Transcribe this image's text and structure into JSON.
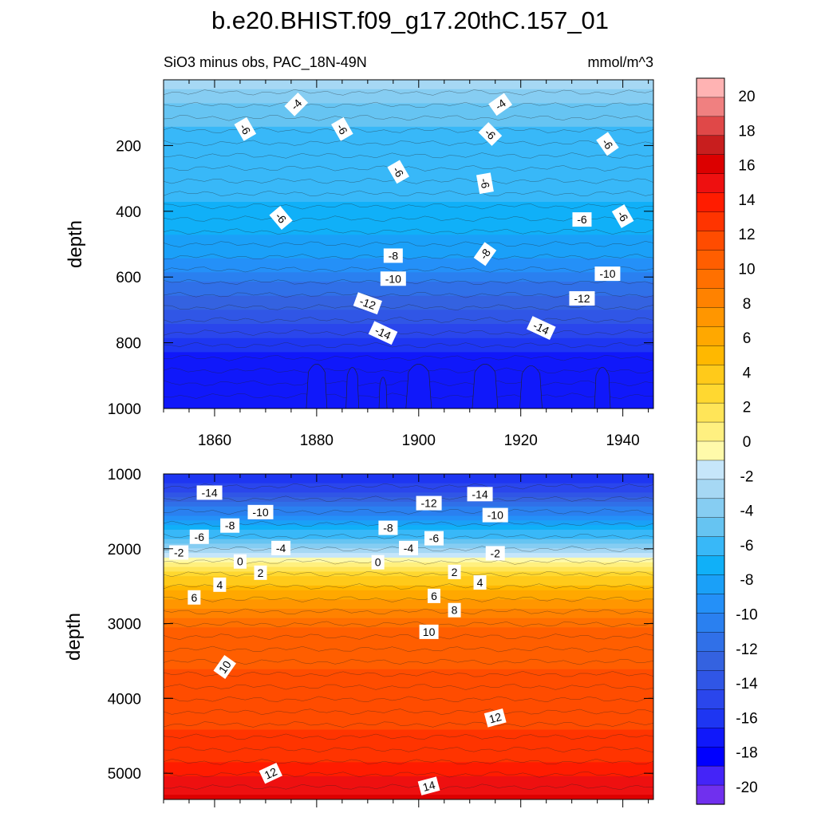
{
  "chart_data": [
    {
      "type": "heatmap",
      "panel": "upper",
      "title": "b.e20.BHIST.f09_g17.20thC.157_01",
      "subtitle_left": "SiO3 minus obs, PAC_18N-49N",
      "subtitle_right": "mmol/m^3",
      "xlabel": "",
      "ylabel": "depth",
      "xlim": [
        1850,
        1946
      ],
      "ylim": [
        1000,
        0
      ],
      "x_ticks": [
        1860,
        1880,
        1900,
        1920,
        1940
      ],
      "y_ticks": [
        200,
        400,
        600,
        800,
        1000
      ],
      "depth_value_profile": [
        {
          "depth": 0,
          "value": -2
        },
        {
          "depth": 60,
          "value": -4
        },
        {
          "depth": 150,
          "value": -5.5
        },
        {
          "depth": 300,
          "value": -6
        },
        {
          "depth": 420,
          "value": -6.5
        },
        {
          "depth": 520,
          "value": -8
        },
        {
          "depth": 600,
          "value": -10
        },
        {
          "depth": 680,
          "value": -12
        },
        {
          "depth": 760,
          "value": -14
        },
        {
          "depth": 840,
          "value": -16
        },
        {
          "depth": 1000,
          "value": -16.5
        }
      ],
      "contour_labels": [
        {
          "x": 1876,
          "depth": 75,
          "text": "-4",
          "angle": -45
        },
        {
          "x": 1916,
          "depth": 75,
          "text": "-4",
          "angle": -35
        },
        {
          "x": 1866,
          "depth": 150,
          "text": "-6",
          "angle": 60
        },
        {
          "x": 1885,
          "depth": 150,
          "text": "-6",
          "angle": 60
        },
        {
          "x": 1914,
          "depth": 165,
          "text": "-6",
          "angle": 45
        },
        {
          "x": 1937,
          "depth": 195,
          "text": "-6",
          "angle": 55
        },
        {
          "x": 1896,
          "depth": 280,
          "text": "-6",
          "angle": 60
        },
        {
          "x": 1913,
          "depth": 315,
          "text": "-6",
          "angle": 80
        },
        {
          "x": 1873,
          "depth": 420,
          "text": "-6",
          "angle": 50
        },
        {
          "x": 1932,
          "depth": 425,
          "text": "-6",
          "angle": 0
        },
        {
          "x": 1940,
          "depth": 415,
          "text": "-6",
          "angle": 60
        },
        {
          "x": 1895,
          "depth": 535,
          "text": "-8",
          "angle": 0
        },
        {
          "x": 1913,
          "depth": 530,
          "text": "-8",
          "angle": -55
        },
        {
          "x": 1895,
          "depth": 605,
          "text": "-10",
          "angle": 0
        },
        {
          "x": 1937,
          "depth": 590,
          "text": "-10",
          "angle": 0
        },
        {
          "x": 1890,
          "depth": 680,
          "text": "-12",
          "angle": 20
        },
        {
          "x": 1932,
          "depth": 665,
          "text": "-12",
          "angle": 0
        },
        {
          "x": 1893,
          "depth": 770,
          "text": "-14",
          "angle": 25
        },
        {
          "x": 1924,
          "depth": 755,
          "text": "-14",
          "angle": 25
        }
      ]
    },
    {
      "type": "heatmap",
      "panel": "lower",
      "xlabel": "",
      "ylabel": "depth",
      "xlim": [
        1850,
        1946
      ],
      "ylim": [
        5350,
        1000
      ],
      "y_ticks": [
        1000,
        2000,
        3000,
        4000,
        5000
      ],
      "depth_value_profile": [
        {
          "depth": 1000,
          "value": -16
        },
        {
          "depth": 1200,
          "value": -14
        },
        {
          "depth": 1500,
          "value": -10
        },
        {
          "depth": 1800,
          "value": -6
        },
        {
          "depth": 2050,
          "value": -2
        },
        {
          "depth": 2150,
          "value": 0
        },
        {
          "depth": 2300,
          "value": 2
        },
        {
          "depth": 2450,
          "value": 4
        },
        {
          "depth": 2650,
          "value": 6
        },
        {
          "depth": 2850,
          "value": 8
        },
        {
          "depth": 3150,
          "value": 10
        },
        {
          "depth": 4000,
          "value": 11
        },
        {
          "depth": 4700,
          "value": 12
        },
        {
          "depth": 5350,
          "value": 15
        }
      ],
      "contour_labels": [
        {
          "x": 1859,
          "depth": 1250,
          "text": "-14",
          "angle": 0
        },
        {
          "x": 1912,
          "depth": 1270,
          "text": "-14",
          "angle": 0
        },
        {
          "x": 1869,
          "depth": 1510,
          "text": "-10",
          "angle": 0
        },
        {
          "x": 1902,
          "depth": 1390,
          "text": "-12",
          "angle": 0
        },
        {
          "x": 1915,
          "depth": 1550,
          "text": "-10",
          "angle": 0
        },
        {
          "x": 1863,
          "depth": 1690,
          "text": "-8",
          "angle": 0
        },
        {
          "x": 1894,
          "depth": 1720,
          "text": "-8",
          "angle": 0
        },
        {
          "x": 1857,
          "depth": 1840,
          "text": "-6",
          "angle": 0
        },
        {
          "x": 1873,
          "depth": 1990,
          "text": "-4",
          "angle": 0
        },
        {
          "x": 1898,
          "depth": 1990,
          "text": "-4",
          "angle": 0
        },
        {
          "x": 1903,
          "depth": 1860,
          "text": "-6",
          "angle": 0
        },
        {
          "x": 1853,
          "depth": 2050,
          "text": "-2",
          "angle": 0
        },
        {
          "x": 1915,
          "depth": 2060,
          "text": "-2",
          "angle": 0
        },
        {
          "x": 1865,
          "depth": 2170,
          "text": "0",
          "angle": 0
        },
        {
          "x": 1892,
          "depth": 2180,
          "text": "0",
          "angle": 0
        },
        {
          "x": 1869,
          "depth": 2320,
          "text": "2",
          "angle": 0
        },
        {
          "x": 1907,
          "depth": 2310,
          "text": "2",
          "angle": 0
        },
        {
          "x": 1861,
          "depth": 2480,
          "text": "4",
          "angle": 0
        },
        {
          "x": 1912,
          "depth": 2450,
          "text": "4",
          "angle": 0
        },
        {
          "x": 1856,
          "depth": 2650,
          "text": "6",
          "angle": 0
        },
        {
          "x": 1903,
          "depth": 2630,
          "text": "6",
          "angle": 0
        },
        {
          "x": 1907,
          "depth": 2820,
          "text": "8",
          "angle": 0
        },
        {
          "x": 1902,
          "depth": 3110,
          "text": "10",
          "angle": 0
        },
        {
          "x": 1862,
          "depth": 3580,
          "text": "10",
          "angle": -55
        },
        {
          "x": 1915,
          "depth": 4260,
          "text": "12",
          "angle": -15
        },
        {
          "x": 1871,
          "depth": 5000,
          "text": "12",
          "angle": -25
        },
        {
          "x": 1902,
          "depth": 5170,
          "text": "14",
          "angle": -15
        }
      ]
    }
  ],
  "colorbar": {
    "levels": [
      20,
      18,
      16,
      14,
      12,
      10,
      8,
      6,
      4,
      2,
      0,
      -2,
      -4,
      -6,
      -8,
      -10,
      -12,
      -14,
      -16,
      -18,
      -20
    ],
    "colors": [
      "#ffb3b3",
      "#f08080",
      "#e04848",
      "#c81e1e",
      "#dc0000",
      "#ee1010",
      "#ff1c00",
      "#ff3400",
      "#ff4c00",
      "#ff5e00",
      "#ff7000",
      "#ff8200",
      "#ff9600",
      "#ffa800",
      "#ffb800",
      "#ffca1a",
      "#ffd830",
      "#ffe558",
      "#fff080",
      "#fffaaa",
      "#c6e6fa",
      "#a6d8f4",
      "#86cdf2",
      "#66c4f2",
      "#38b8f8",
      "#10b0f8",
      "#1aa0f8",
      "#2490f8",
      "#2a80f0",
      "#3070e8",
      "#3462e0",
      "#3056e6",
      "#2a46ec",
      "#1e36f2",
      "#1018fa",
      "#0000ff",
      "#4424f8",
      "#7030ee"
    ]
  }
}
